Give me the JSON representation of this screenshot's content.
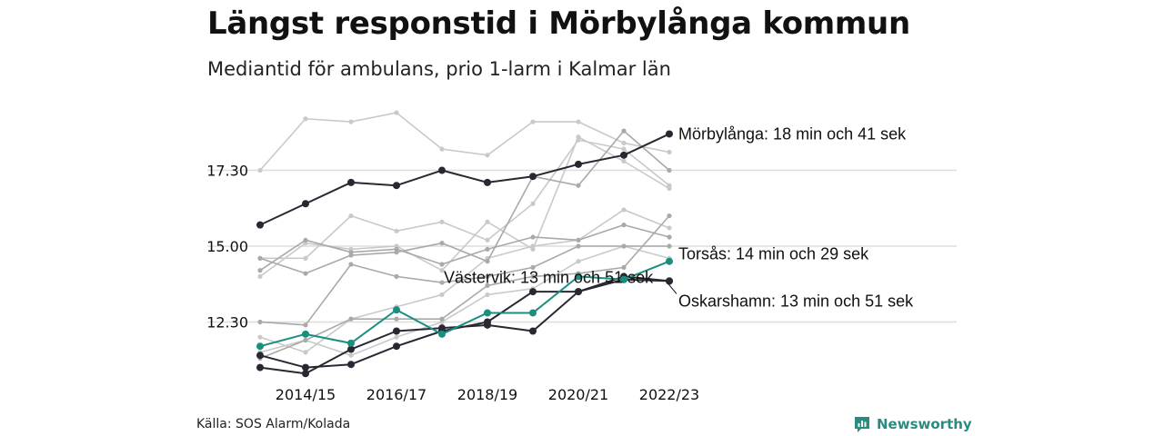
{
  "title": "Längst responstid i Mörbylånga kommun",
  "subtitle": "Mediantid för ambulans, prio 1-larm i Kalmar län",
  "source": "Källa: SOS Alarm/Kolada",
  "brand": {
    "name": "Newsworthy",
    "icon": "newsworthy-logo-icon",
    "color": "#2a8c7f"
  },
  "colors": {
    "highlight": "#2a2733",
    "accent": "#1a8f80",
    "context_light": "#c9c9c9",
    "context_dark": "#a9a9a9",
    "gridline": "#dddddd"
  },
  "chart_data": {
    "type": "line",
    "x": [
      "2013/14",
      "2014/15",
      "2015/16",
      "2016/17",
      "2017/18",
      "2018/19",
      "2019/20",
      "2020/21",
      "2021/22",
      "2022/23"
    ],
    "x_tick_labels": [
      "2014/15",
      "2016/17",
      "2018/19",
      "2020/21",
      "2022/23"
    ],
    "y_ticks": [
      12.5,
      15.0,
      17.5
    ],
    "y_tick_labels": [
      "12.30",
      "15.00",
      "17.30"
    ],
    "ylim": [
      9.4,
      20.6
    ],
    "grid": true,
    "xlabel": "",
    "ylabel": "",
    "legend": "none",
    "series": [
      {
        "name": "Mörbylånga",
        "label": "Mörbylånga: 18 min och 41 sek",
        "style": "highlight",
        "values": [
          15.7,
          16.4,
          17.1,
          17.0,
          17.5,
          17.1,
          17.3,
          17.7,
          18.0,
          18.7
        ]
      },
      {
        "name": "Torsås",
        "label": "Torsås: 14 min och 29 sek",
        "style": "accent",
        "values": [
          11.7,
          12.1,
          11.8,
          12.9,
          12.1,
          12.8,
          12.8,
          14.0,
          13.9,
          14.5
        ]
      },
      {
        "name": "Västervik",
        "label": "Västervik: 13 min och 51 sek",
        "style": "highlight",
        "values": [
          11.0,
          10.8,
          11.6,
          12.2,
          12.3,
          12.4,
          12.2,
          13.5,
          14.0,
          13.85
        ]
      },
      {
        "name": "Oskarshamn",
        "label": "Oskarshamn: 13 min och 51 sek",
        "style": "highlight",
        "values": [
          11.4,
          11.0,
          11.1,
          11.7,
          12.2,
          12.5,
          13.5,
          13.5,
          13.9,
          13.85
        ]
      },
      {
        "style": "context_light",
        "values": [
          17.5,
          19.2,
          19.1,
          19.4,
          18.2,
          18.0,
          19.1,
          19.1,
          18.4,
          18.1
        ]
      },
      {
        "style": "context_light",
        "values": [
          14.0,
          15.1,
          14.9,
          15.0,
          14.2,
          15.8,
          14.9,
          18.6,
          17.8,
          16.9
        ]
      },
      {
        "style": "context_dark",
        "values": [
          14.6,
          14.1,
          14.7,
          14.8,
          15.1,
          14.5,
          17.3,
          17.0,
          18.8,
          17.5
        ]
      },
      {
        "style": "context_light",
        "values": [
          14.6,
          14.6,
          16.0,
          15.5,
          15.8,
          15.2,
          16.4,
          18.5,
          18.2,
          17.0
        ]
      },
      {
        "style": "context_dark",
        "values": [
          14.2,
          15.2,
          14.8,
          14.9,
          14.4,
          14.9,
          15.3,
          15.2,
          15.7,
          15.3
        ]
      },
      {
        "style": "context_light",
        "values": [
          12.0,
          11.5,
          12.6,
          13.0,
          13.4,
          14.6,
          15.0,
          15.2,
          16.2,
          15.6
        ]
      },
      {
        "style": "context_dark",
        "values": [
          12.5,
          12.4,
          14.4,
          14.0,
          13.8,
          14.0,
          14.3,
          15.0,
          15.0,
          15.0
        ]
      },
      {
        "style": "context_light",
        "values": [
          11.5,
          11.9,
          11.4,
          12.0,
          12.5,
          13.4,
          13.6,
          14.5,
          15.0,
          14.6
        ]
      },
      {
        "style": "context_dark",
        "values": [
          11.3,
          11.9,
          12.6,
          12.6,
          12.6,
          13.7,
          14.0,
          14.1,
          14.3,
          16.0
        ]
      }
    ]
  }
}
